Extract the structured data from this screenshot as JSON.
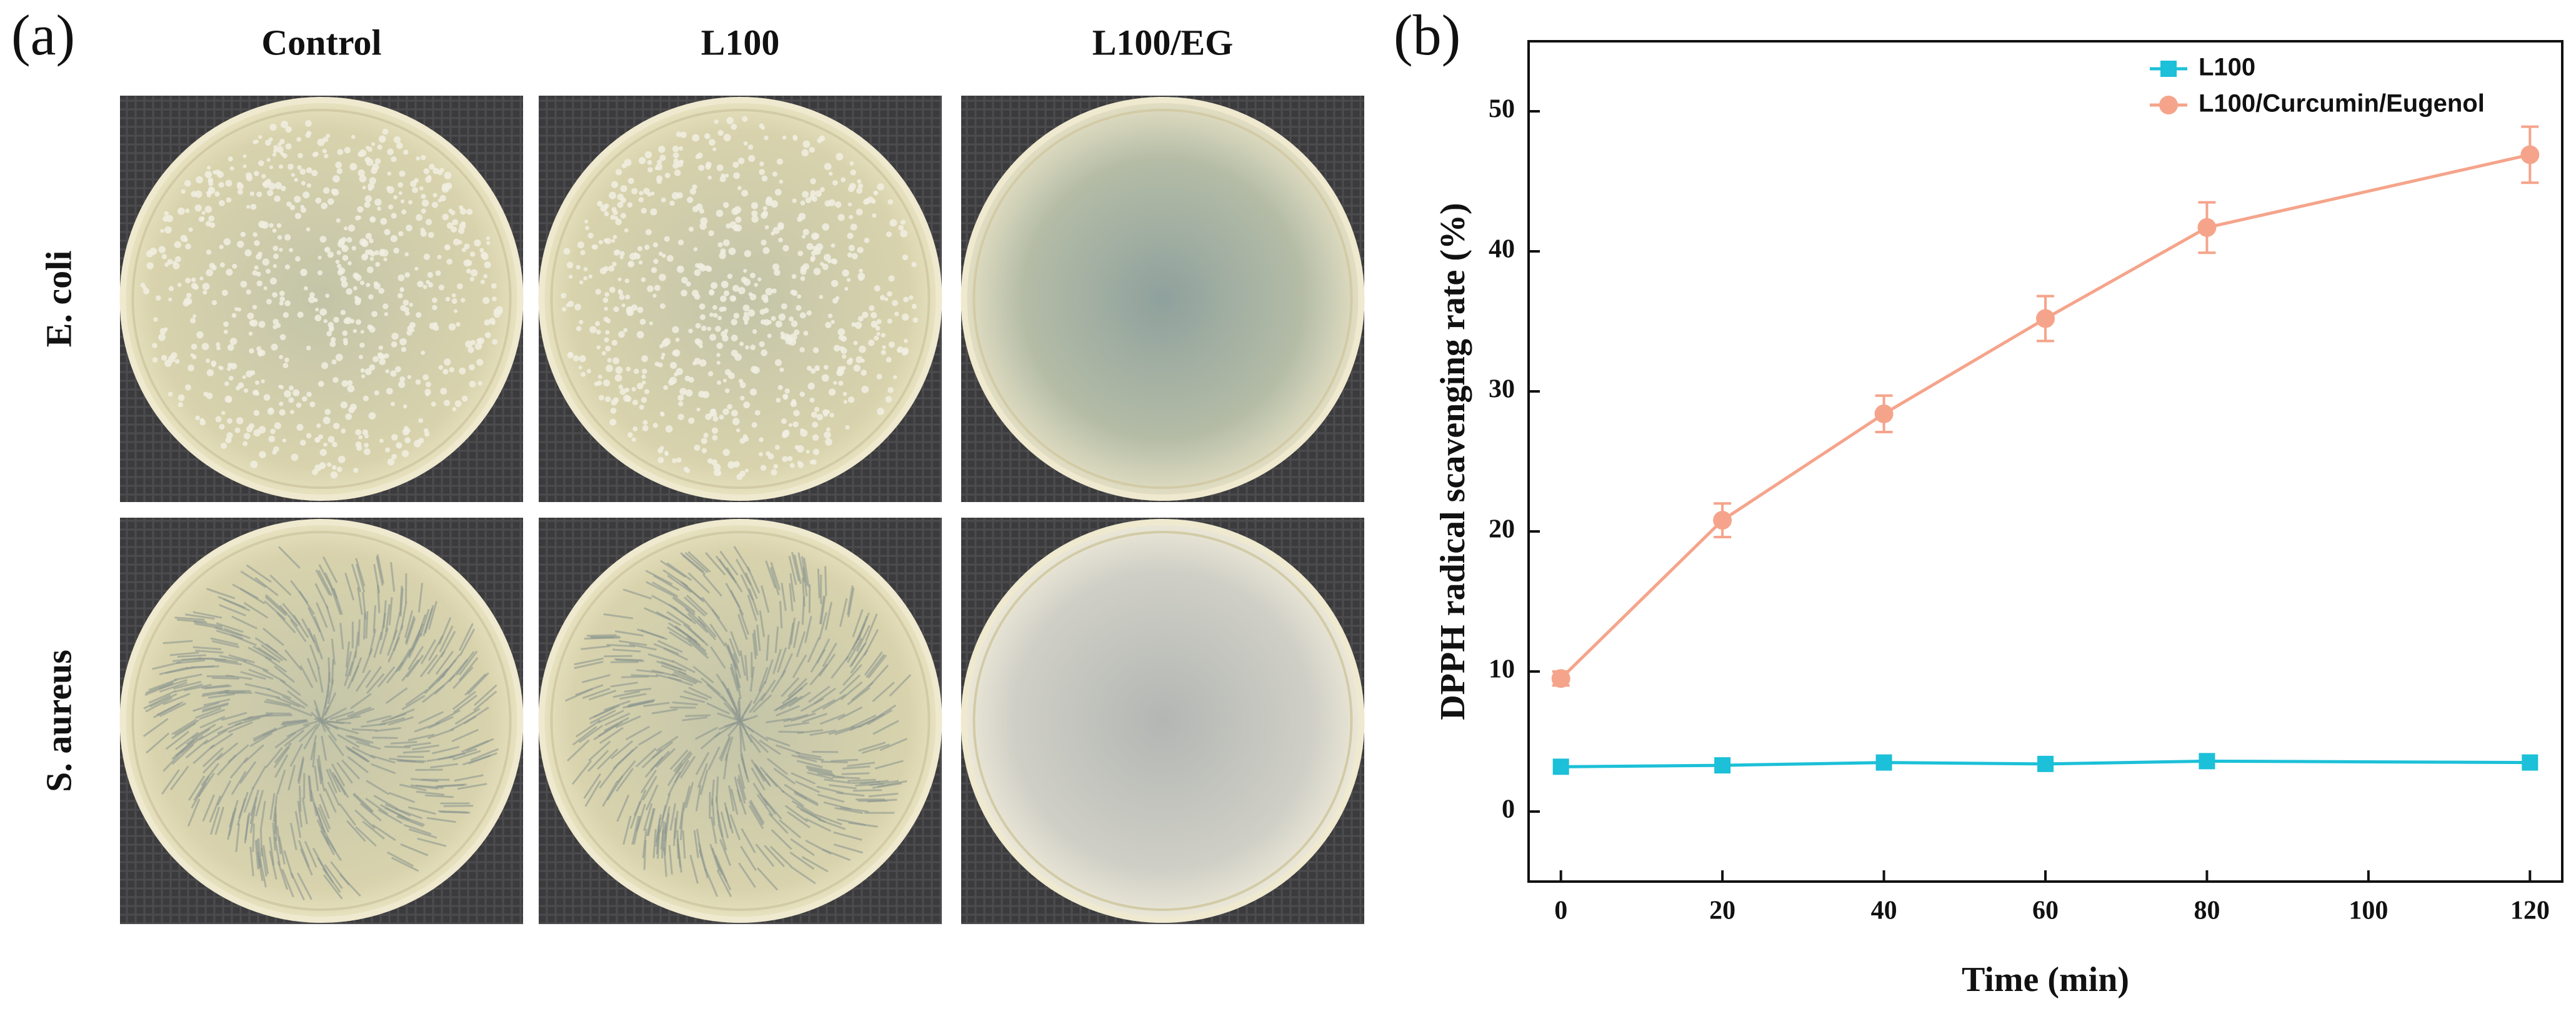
{
  "panel_a": {
    "label": "(a)",
    "columns": [
      "Control",
      "L100",
      "L100/EG"
    ],
    "rows": [
      "E. coli",
      "S. aureus"
    ]
  },
  "chart_data": {
    "type": "line",
    "label": "(b)",
    "x_label": "Time (min)",
    "y_label": "DPPH radical scavenging rate (%)",
    "x": [
      0,
      20,
      40,
      60,
      80,
      120
    ],
    "series": [
      {
        "name": "L100",
        "color": "#1cc0d8",
        "marker": "square",
        "values": [
          3.2,
          3.3,
          3.5,
          3.4,
          3.6,
          3.5
        ]
      },
      {
        "name": "L100/Curcumin/Eugenol",
        "color": "#f5a48b",
        "marker": "circle",
        "values": [
          9.5,
          20.8,
          28.4,
          35.2,
          41.7,
          46.9
        ],
        "errors": [
          0.5,
          1.2,
          1.3,
          1.6,
          1.8,
          2.0
        ]
      }
    ],
    "xlim": [
      -4,
      124
    ],
    "xticks": [
      0,
      20,
      40,
      60,
      80,
      100,
      120
    ],
    "ylim": [
      -5,
      55
    ],
    "yticks": [
      0,
      10,
      20,
      30,
      40,
      50
    ],
    "legend": "upper right"
  }
}
